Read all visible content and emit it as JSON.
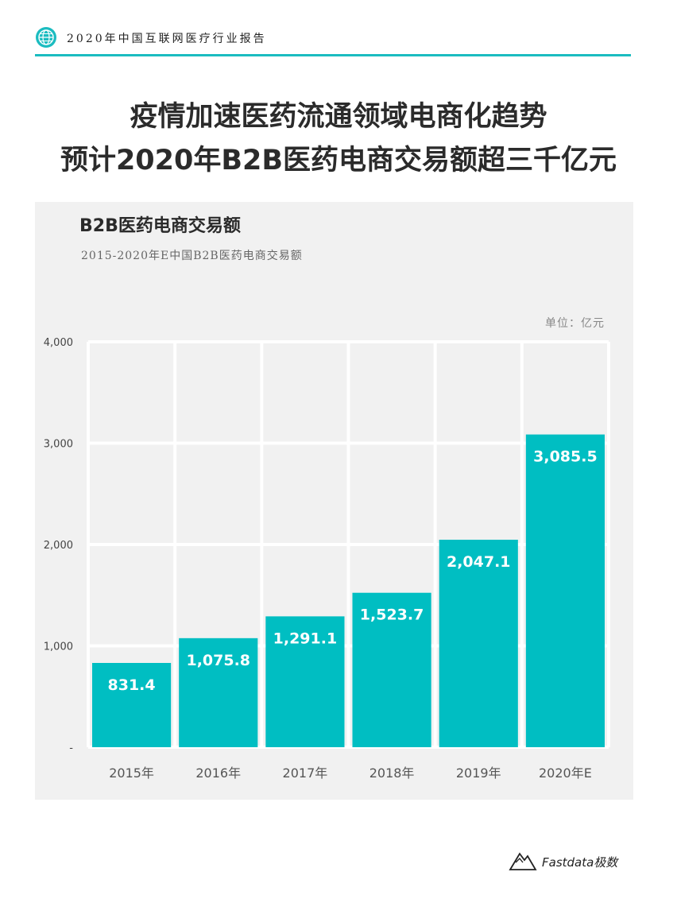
{
  "header": {
    "report_title": "2020年中国互联网医疗行业报告"
  },
  "headline": {
    "line1": "疫情加速医药流通领域电商化趋势",
    "line2": "预计2020年B2B医药电商交易额超三千亿元"
  },
  "chart_panel": {
    "unit_label": "单位：亿元"
  },
  "chart_data": {
    "type": "bar",
    "title": "B2B医药电商交易额",
    "subtitle": "2015-2020年E中国B2B医药电商交易额",
    "categories": [
      "2015年",
      "2016年",
      "2017年",
      "2018年",
      "2019年",
      "2020年E"
    ],
    "values": [
      831.4,
      1075.8,
      1291.1,
      1523.7,
      2047.1,
      3085.5
    ],
    "value_labels": [
      "831.4",
      "1,075.8",
      "1,291.1",
      "1,523.7",
      "2,047.1",
      "3,085.5"
    ],
    "ylim": [
      0,
      4000
    ],
    "yticks": [
      0,
      1000,
      2000,
      3000,
      4000
    ],
    "ytick_labels": [
      "-",
      "1,000",
      "2,000",
      "3,000",
      "4,000"
    ],
    "xlabel": "",
    "ylabel": "",
    "grid": true,
    "bar_color": "#00bec2"
  },
  "footer": {
    "logo_text": "Fastdata极数"
  }
}
